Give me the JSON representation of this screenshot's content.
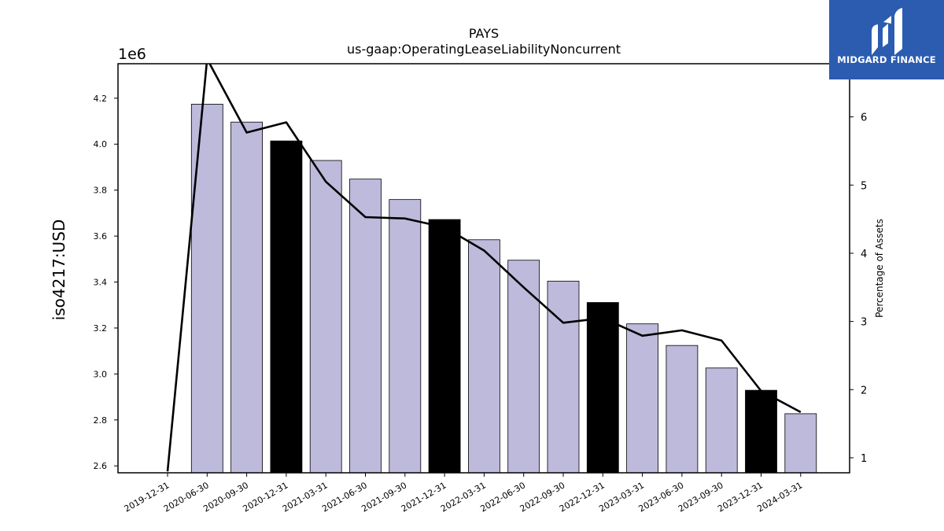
{
  "chart_data": {
    "type": "bar",
    "title": "PAYS",
    "subtitle": "us-gaap:OperatingLeaseLiabilityNoncurrent",
    "ylabel": "iso4217:USD",
    "y2label": "Percentage of Assets",
    "y_scale_label": "1e6",
    "categories": [
      "2019-12-31",
      "2020-06-30",
      "2020-09-30",
      "2020-12-31",
      "2021-03-31",
      "2021-06-30",
      "2021-09-30",
      "2021-12-31",
      "2022-03-31",
      "2022-06-30",
      "2022-09-30",
      "2022-12-31",
      "2023-03-31",
      "2023-06-30",
      "2023-09-30",
      "2023-12-31",
      "2024-03-31"
    ],
    "series": [
      {
        "kind": "bar",
        "values": [
          null,
          4174000,
          4096000,
          4014000,
          3929000,
          3848000,
          3759000,
          3672000,
          3584000,
          3495000,
          3404000,
          3311000,
          3218000,
          3124000,
          3026000,
          2929000,
          2827000
        ],
        "highlight": [
          false,
          false,
          false,
          true,
          false,
          false,
          false,
          true,
          false,
          false,
          false,
          true,
          false,
          false,
          false,
          true,
          false
        ],
        "color": "#bdbadb",
        "highlight_color": "#000000"
      },
      {
        "kind": "line",
        "axis": "right",
        "values": [
          0.8,
          6.85,
          5.77,
          5.92,
          5.05,
          4.53,
          4.51,
          4.38,
          4.04,
          3.5,
          2.98,
          3.05,
          2.79,
          2.87,
          2.72,
          1.98,
          1.67
        ],
        "color": "#000000"
      }
    ],
    "ylim": [
      2.57,
      4.35
    ],
    "y2lim": [
      0.78,
      6.78
    ],
    "yticks": [
      "2.6",
      "2.8",
      "3.0",
      "3.2",
      "3.4",
      "3.6",
      "3.8",
      "4.0",
      "4.2"
    ],
    "y2ticks": [
      "1",
      "2",
      "3",
      "4",
      "5",
      "6"
    ],
    "grid": false,
    "legend": "none"
  },
  "logo": {
    "text": "MIDGARD FINANCE",
    "background": "#2b5cb0"
  }
}
